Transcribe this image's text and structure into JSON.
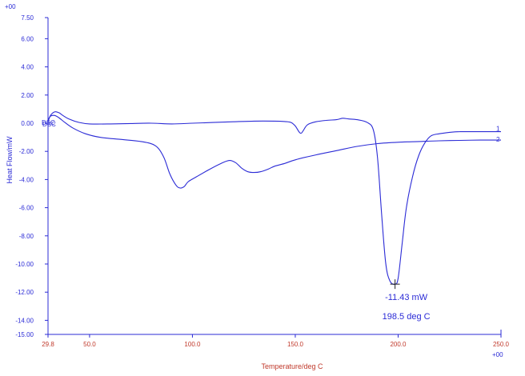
{
  "chart_data": {
    "type": "line",
    "title": "",
    "xlabel": "Temperature/deg C",
    "ylabel": "Heat Flow/mW",
    "y_scale_note": "+00",
    "x_scale_note": "+00",
    "xlim": [
      29.8,
      250.0
    ],
    "ylim": [
      -15.0,
      7.5
    ],
    "x_ticks": [
      {
        "value": 29.8,
        "label": "29.8"
      },
      {
        "value": 50.0,
        "label": "50.0"
      },
      {
        "value": 100.0,
        "label": "100.0"
      },
      {
        "value": 150.0,
        "label": "150.0"
      },
      {
        "value": 200.0,
        "label": "200.0"
      },
      {
        "value": 250.0,
        "label": "250.0"
      }
    ],
    "y_ticks": [
      {
        "value": 7.5,
        "label": "7.50"
      },
      {
        "value": 6.0,
        "label": "6.00"
      },
      {
        "value": 4.0,
        "label": "4.00"
      },
      {
        "value": 2.0,
        "label": "2.00"
      },
      {
        "value": 0.0,
        "label": "0.00"
      },
      {
        "value": -2.0,
        "label": "-2.00"
      },
      {
        "value": -4.0,
        "label": "-4.00"
      },
      {
        "value": -6.0,
        "label": "-6.00"
      },
      {
        "value": -8.0,
        "label": "-8.00"
      },
      {
        "value": -10.0,
        "label": "-10.00"
      },
      {
        "value": -12.0,
        "label": "-12.00"
      },
      {
        "value": -14.0,
        "label": "-14.00"
      },
      {
        "value": -15.0,
        "label": "-15.00"
      }
    ],
    "grid": false,
    "colors": {
      "curve": "#2b2bd6",
      "axis_labels": "#c0392b",
      "axes": "#2b2bd6"
    },
    "series": [
      {
        "name": "1",
        "x": [
          29.8,
          31,
          33,
          35,
          37,
          40,
          45,
          50,
          60,
          70,
          80,
          90,
          100,
          110,
          120,
          130,
          140,
          145,
          148,
          150,
          152,
          153,
          154,
          156,
          160,
          165,
          170,
          173,
          176,
          180,
          185,
          188,
          190,
          192,
          194,
          196,
          198.5,
          200,
          202,
          204,
          207,
          210,
          213,
          216,
          220,
          225,
          230,
          235,
          240,
          245,
          250
        ],
        "y": [
          0.1,
          0.55,
          0.8,
          0.75,
          0.55,
          0.3,
          0.05,
          -0.05,
          -0.05,
          -0.02,
          0.0,
          -0.05,
          0.0,
          0.05,
          0.1,
          0.15,
          0.15,
          0.12,
          0.05,
          -0.2,
          -0.65,
          -0.7,
          -0.5,
          -0.1,
          0.1,
          0.2,
          0.25,
          0.35,
          0.3,
          0.25,
          0.05,
          -0.5,
          -2.5,
          -6.5,
          -10.0,
          -11.2,
          -11.43,
          -11.0,
          -8.5,
          -6.0,
          -3.8,
          -2.3,
          -1.4,
          -0.9,
          -0.75,
          -0.65,
          -0.6,
          -0.6,
          -0.6,
          -0.6,
          -0.6
        ]
      },
      {
        "name": "2",
        "x": [
          29.8,
          31,
          33,
          35,
          38,
          42,
          48,
          55,
          65,
          75,
          82,
          86,
          89,
          92,
          94,
          96,
          98,
          102,
          108,
          114,
          118,
          121,
          124,
          127,
          130,
          133,
          137,
          140,
          145,
          150,
          160,
          170,
          180,
          190,
          200,
          210,
          220,
          230,
          240,
          250
        ],
        "y": [
          0.2,
          0.5,
          0.55,
          0.4,
          0.05,
          -0.35,
          -0.75,
          -1.0,
          -1.15,
          -1.3,
          -1.6,
          -2.4,
          -3.6,
          -4.4,
          -4.6,
          -4.5,
          -4.15,
          -3.8,
          -3.3,
          -2.85,
          -2.65,
          -2.8,
          -3.2,
          -3.45,
          -3.5,
          -3.45,
          -3.25,
          -3.05,
          -2.85,
          -2.6,
          -2.25,
          -1.95,
          -1.65,
          -1.45,
          -1.35,
          -1.3,
          -1.25,
          -1.22,
          -1.2,
          -1.2
        ]
      }
    ],
    "annotations": [
      {
        "text": "-11.43 mW",
        "x": 198.5,
        "y": -11.43
      },
      {
        "text": "198.5 deg C",
        "x": 198.5,
        "y": -11.43
      }
    ],
    "start_labels": [
      "DSC",
      "DSC"
    ]
  }
}
